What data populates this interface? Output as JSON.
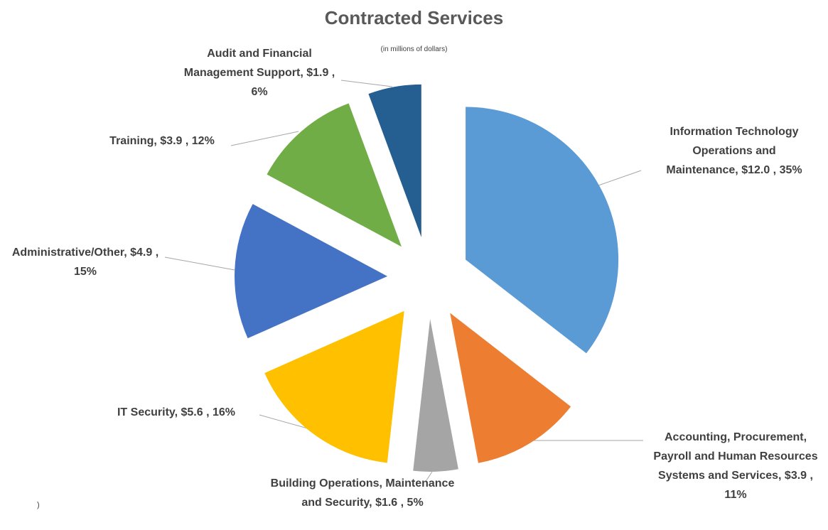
{
  "chart_data": {
    "type": "pie",
    "title": "Contracted Services",
    "subtitle": "(in millions of dollars)",
    "categories": [
      "Information Technology Operations and Maintenance",
      "Accounting, Procurement, Payroll and Human Resources Systems and Services",
      "Building Operations, Maintenance and Security",
      "IT Security",
      "Administrative/Other",
      "Training",
      "Audit and Financial Management Support"
    ],
    "values": [
      12.0,
      3.9,
      1.6,
      5.6,
      4.9,
      3.9,
      1.9
    ],
    "value_labels": [
      "$12.0",
      "$3.9",
      "$1.6",
      "$5.6",
      "$4.9",
      "$3.9",
      "$1.9"
    ],
    "percents": [
      35,
      11,
      5,
      16,
      15,
      12,
      6
    ],
    "percent_labels": [
      "35%",
      "11%",
      "5%",
      "16%",
      "15%",
      "12%",
      "6%"
    ],
    "colors": [
      "#5b9bd5",
      "#ed7d31",
      "#a5a5a5",
      "#ffc000",
      "#4472c4",
      "#70ad47",
      "#255e91"
    ],
    "footnote": ")"
  }
}
